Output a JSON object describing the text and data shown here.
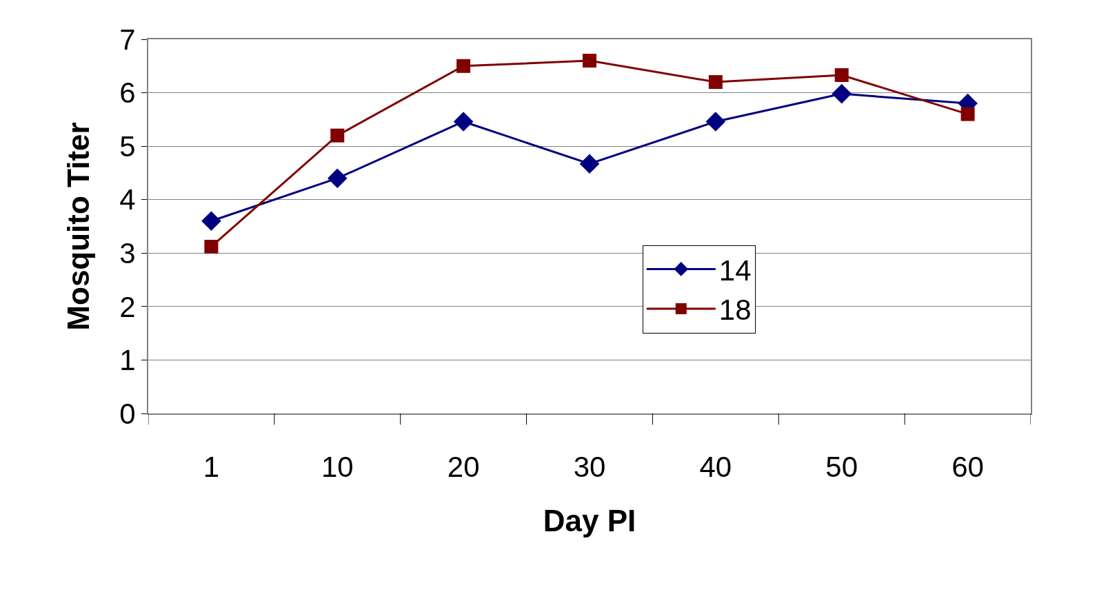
{
  "chart_data": {
    "type": "line",
    "xlabel": "Day PI",
    "ylabel": "Mosquito Titer",
    "categories": [
      "1",
      "10",
      "20",
      "30",
      "40",
      "50",
      "60"
    ],
    "series": [
      {
        "name": "14",
        "color": "#000080",
        "marker": "diamond",
        "values": [
          3.6,
          4.4,
          5.46,
          4.67,
          5.46,
          5.98,
          5.8
        ]
      },
      {
        "name": "18",
        "color": "#800000",
        "marker": "square",
        "values": [
          3.12,
          5.2,
          6.5,
          6.6,
          6.2,
          6.33,
          5.6
        ]
      }
    ],
    "ylim": [
      0,
      7
    ],
    "yticks": [
      0,
      1,
      2,
      3,
      4,
      5,
      6,
      7
    ],
    "grid": "y",
    "legend": "right",
    "line_style": "solid"
  }
}
